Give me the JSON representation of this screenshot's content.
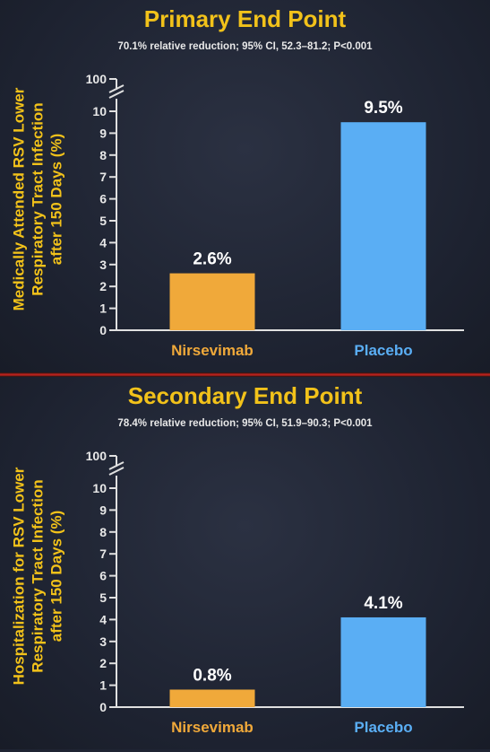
{
  "chart_data": [
    {
      "type": "bar",
      "title": "Primary End Point",
      "subtitle": "70.1% relative reduction; 95% CI, 52.3–81.2; P<0.001",
      "ylabel_lines": [
        "Medically Attended RSV Lower",
        "Respiratory Tract Infection",
        "after 150 Days (%)"
      ],
      "xlabel": "",
      "categories": [
        "Nirsevimab",
        "Placebo"
      ],
      "values": [
        2.6,
        9.5
      ],
      "data_labels": [
        "2.6%",
        "9.5%"
      ],
      "colors": [
        "#f0a93a",
        "#5aaef4"
      ],
      "category_label_colors": [
        "#f0a93a",
        "#5aaef4"
      ],
      "yticks": [
        0,
        1,
        2,
        3,
        4,
        5,
        6,
        7,
        8,
        9,
        10
      ],
      "ytick_break_label": "100",
      "ylim": [
        0,
        10
      ],
      "axis_break": true,
      "grid": false
    },
    {
      "type": "bar",
      "title": "Secondary End Point",
      "subtitle": "78.4% relative reduction; 95% CI, 51.9–90.3; P<0.001",
      "ylabel_lines": [
        "Hospitalization for RSV Lower",
        "Respiratory Tract Infection",
        "after 150 Days (%)"
      ],
      "xlabel": "",
      "categories": [
        "Nirsevimab",
        "Placebo"
      ],
      "values": [
        0.8,
        4.1
      ],
      "data_labels": [
        "0.8%",
        "4.1%"
      ],
      "colors": [
        "#f0a93a",
        "#5aaef4"
      ],
      "category_label_colors": [
        "#f0a93a",
        "#5aaef4"
      ],
      "yticks": [
        0,
        1,
        2,
        3,
        4,
        5,
        6,
        7,
        8,
        9,
        10
      ],
      "ytick_break_label": "100",
      "ylim": [
        0,
        10
      ],
      "axis_break": true,
      "grid": false
    }
  ],
  "theme": {
    "title_color": "#f2c21a",
    "text_color": "#e8e8e8",
    "axis_color": "#e0e0e0"
  }
}
